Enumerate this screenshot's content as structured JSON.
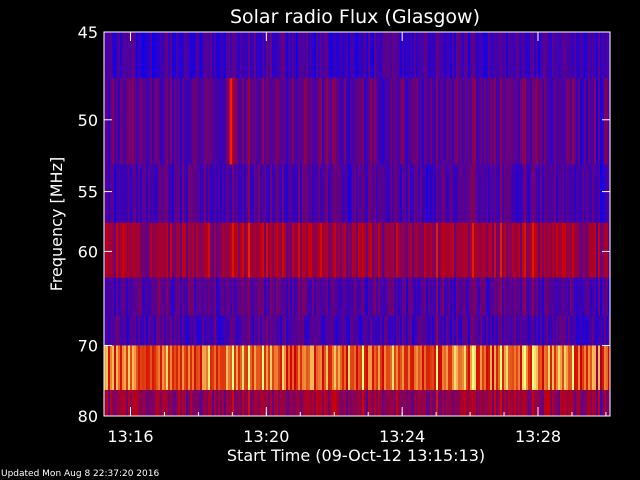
{
  "chart_data": {
    "type": "heatmap",
    "title": "Solar radio Flux (Glasgow)",
    "xlabel": "Start Time (09-Oct-12 13:15:13)",
    "ylabel": "Frequency [MHz]",
    "x_ticks": [
      "13:16",
      "13:20",
      "13:24",
      "13:28"
    ],
    "x_tick_minutes": [
      0.78,
      4.78,
      8.78,
      12.78
    ],
    "xlim_minutes": [
      0,
      14.9
    ],
    "y_ticks": [
      "45",
      "50",
      "55",
      "60",
      "70",
      "80"
    ],
    "y_tick_values": [
      45,
      50,
      55,
      60,
      70,
      80
    ],
    "ylim": [
      45,
      80
    ],
    "frequency_bands": [
      {
        "from_mhz": 45.0,
        "to_mhz": 47.5,
        "level": 0.15
      },
      {
        "from_mhz": 47.5,
        "to_mhz": 53.0,
        "level": 0.22
      },
      {
        "from_mhz": 53.0,
        "to_mhz": 57.5,
        "level": 0.18
      },
      {
        "from_mhz": 57.5,
        "to_mhz": 62.5,
        "level": 0.38
      },
      {
        "from_mhz": 62.5,
        "to_mhz": 66.5,
        "level": 0.2
      },
      {
        "from_mhz": 66.5,
        "to_mhz": 70.0,
        "level": 0.17
      },
      {
        "from_mhz": 70.0,
        "to_mhz": 76.0,
        "level": 0.72
      },
      {
        "from_mhz": 76.0,
        "to_mhz": 80.0,
        "level": 0.35
      }
    ],
    "burst": {
      "minute": 3.7,
      "from_mhz": 47.5,
      "to_mhz": 53.0
    },
    "colors": {
      "low": "#0000ff",
      "mid": "#cc0000",
      "high": "#ffff88",
      "axis": "#ffffff"
    }
  },
  "footer": {
    "updated": "Updated Mon Aug  8 22:37:20 2016"
  }
}
